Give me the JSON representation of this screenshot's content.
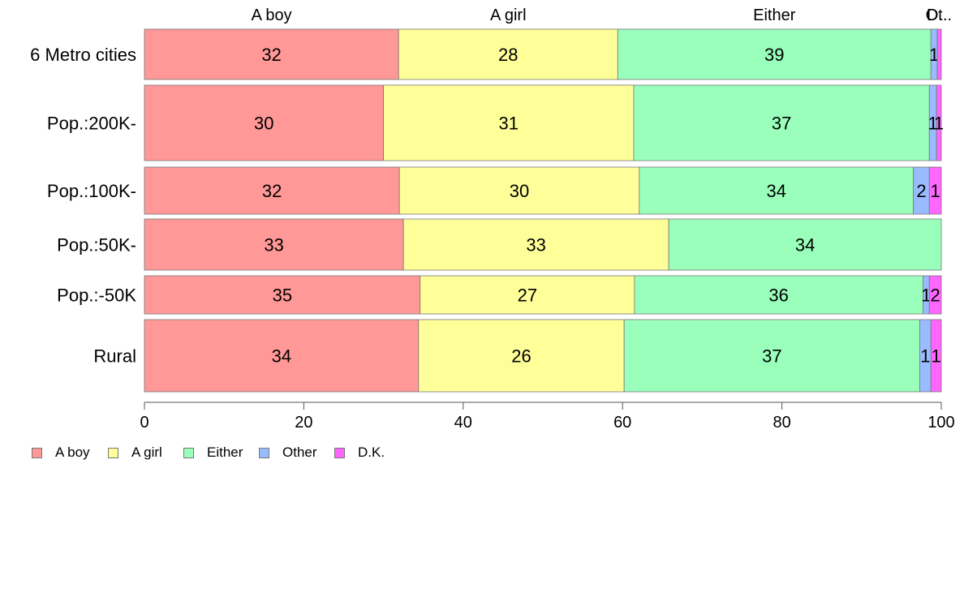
{
  "chart_data": {
    "type": "bar",
    "orientation": "horizontal",
    "stacked": true,
    "categories": [
      "6 Metro cities",
      "Pop.:200K-",
      "Pop.:100K-",
      "Pop.:50K-",
      "Pop.:-50K",
      "Rural"
    ],
    "series": [
      {
        "name": "A boy",
        "color": "#ff9896",
        "values": [
          31.9,
          30.0,
          32.0,
          32.5,
          34.6,
          34.4
        ],
        "labels": [
          "32",
          "30",
          "32",
          "33",
          "35",
          "34"
        ]
      },
      {
        "name": "A girl",
        "color": "#ffff99",
        "values": [
          27.5,
          31.4,
          30.1,
          33.3,
          26.9,
          25.8
        ],
        "labels": [
          "28",
          "31",
          "30",
          "33",
          "27",
          "26"
        ]
      },
      {
        "name": "Either",
        "color": "#99ffbb",
        "values": [
          39.3,
          37.1,
          34.4,
          34.2,
          36.2,
          37.1
        ],
        "labels": [
          "39",
          "37",
          "34",
          "34",
          "36",
          "37"
        ]
      },
      {
        "name": "Other",
        "color": "#99bbff",
        "values": [
          0.8,
          0.9,
          2.0,
          0.0,
          0.8,
          1.4
        ],
        "labels": [
          "1",
          "1",
          "2",
          "",
          "1",
          "1"
        ]
      },
      {
        "name": "D.K.",
        "color": "#ff66ff",
        "values": [
          0.5,
          0.6,
          1.5,
          0.0,
          1.5,
          1.3
        ],
        "labels": [
          "",
          "1",
          "1",
          "",
          "2",
          "1"
        ]
      }
    ],
    "top_labels": [
      "A boy",
      "A girl",
      "Either",
      "Ot",
      "D..."
    ],
    "xlim": [
      0,
      100
    ],
    "xticks": [
      "0",
      "20",
      "40",
      "60",
      "80",
      "100"
    ],
    "xlabel": "",
    "ylabel": "",
    "title": "",
    "legend_position": "bottom-left",
    "grid": false
  },
  "legend": {
    "items": [
      {
        "label": "A boy",
        "color": "#ff9896"
      },
      {
        "label": "A girl",
        "color": "#ffff99"
      },
      {
        "label": "Either",
        "color": "#99ffbb"
      },
      {
        "label": "Other",
        "color": "#99bbff"
      },
      {
        "label": "D.K.",
        "color": "#ff66ff"
      }
    ]
  }
}
